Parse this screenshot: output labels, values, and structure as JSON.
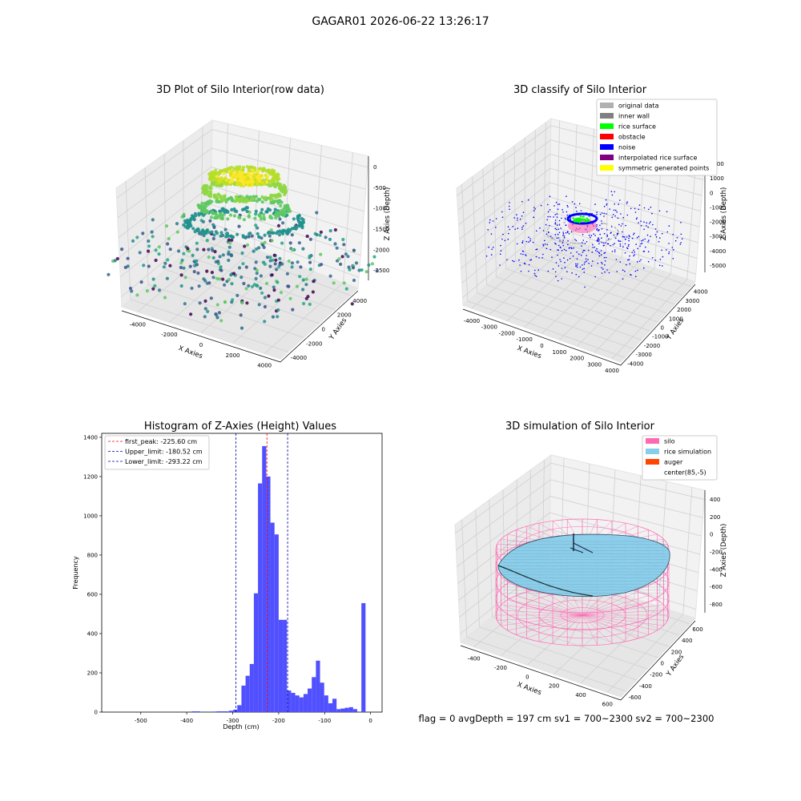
{
  "figure": {
    "suptitle": "GAGAR01 2026-06-22 13:26:17",
    "status_line": "flag = 0     avgDepth = 197 cm  sv1 = 700~2300  sv2 = 700~2300"
  },
  "colors": {
    "pane": "#f2f2f2",
    "grid": "#d0d0d0",
    "hist_bar": "#5050ff",
    "first_peak": "#ff0000",
    "limits": "#0000aa",
    "silo": "#ff69b4",
    "rice": "#87ceeb",
    "auger": "#ff4500",
    "noise": "#0000ff",
    "rice_surface": "#00ff00",
    "original": "#b0b0b0"
  },
  "chart_data": [
    {
      "type": "scatter3d",
      "title": "3D Plot of Silo Interior(row data)",
      "xlabel": "X Axies",
      "ylabel": "Y Axies",
      "zlabel": "Z Axies (Depth)",
      "xticks": [
        "-4000",
        "-2000",
        "0",
        "2000",
        "4000"
      ],
      "yticks": [
        "-4000",
        "-2000",
        "0",
        "2000",
        "4000"
      ],
      "zticks": [
        "0",
        "-500",
        "-1000",
        "-1500",
        "-2000",
        "-2500"
      ],
      "xlim": [
        -4500,
        4500
      ],
      "ylim": [
        -4500,
        4500
      ],
      "zlim": [
        -2700,
        100
      ],
      "colormap": "viridis"
    },
    {
      "type": "scatter3d",
      "title": "3D classify of Silo Interior",
      "xlabel": "X Axies",
      "ylabel": "Y Axies",
      "zlabel": "Z Axies (Depth)",
      "xticks": [
        "-4000",
        "-3000",
        "-2000",
        "-1000",
        "0",
        "1000",
        "2000",
        "3000",
        "4000"
      ],
      "yticks": [
        "-4000",
        "-3000",
        "-2000",
        "-1000",
        "0",
        "1000",
        "2000",
        "3000",
        "4000"
      ],
      "zticks": [
        "2000",
        "1000",
        "0",
        "-1000",
        "-2000",
        "-3000",
        "-4000",
        "-5000"
      ],
      "zticks_partial_top": "000",
      "legend": [
        {
          "label": "original data",
          "color": "#b0b0b0"
        },
        {
          "label": "inner wall",
          "color": "#808080"
        },
        {
          "label": "rice surface",
          "color": "#00ff00"
        },
        {
          "label": "obstacle",
          "color": "#ff0000"
        },
        {
          "label": "noise",
          "color": "#0000ff"
        },
        {
          "label": "interpolated rice surface",
          "color": "#800080"
        },
        {
          "label": "symmetric generated points",
          "color": "#ffff00"
        }
      ],
      "legend_loc": "upper right"
    },
    {
      "type": "histogram",
      "title": "Histogram of Z-Axies (Height) Values",
      "xlabel": "Depth (cm)",
      "ylabel": "Frequency",
      "xlim": [
        -585,
        25
      ],
      "ylim": [
        0,
        1420
      ],
      "xticks": [
        -500,
        -400,
        -300,
        -200,
        -100,
        0
      ],
      "yticks": [
        0,
        200,
        400,
        600,
        800,
        1000,
        1200,
        1400
      ],
      "bin_width": 9,
      "bins": [
        [
          -389,
          4
        ],
        [
          -380,
          4
        ],
        [
          -344,
          3
        ],
        [
          -335,
          4
        ],
        [
          -326,
          4
        ],
        [
          -317,
          4
        ],
        [
          -308,
          7
        ],
        [
          -299,
          12
        ],
        [
          -290,
          35
        ],
        [
          -281,
          135
        ],
        [
          -272,
          185
        ],
        [
          -263,
          245
        ],
        [
          -254,
          605
        ],
        [
          -245,
          1165
        ],
        [
          -236,
          1355
        ],
        [
          -227,
          1200
        ],
        [
          -218,
          965
        ],
        [
          -209,
          905
        ],
        [
          -200,
          470
        ],
        [
          -191,
          470
        ],
        [
          -182,
          110
        ],
        [
          -173,
          98
        ],
        [
          -164,
          85
        ],
        [
          -155,
          75
        ],
        [
          -146,
          92
        ],
        [
          -137,
          120
        ],
        [
          -128,
          178
        ],
        [
          -119,
          262
        ],
        [
          -110,
          150
        ],
        [
          -101,
          85
        ],
        [
          -92,
          45
        ],
        [
          -83,
          68
        ],
        [
          -74,
          15
        ],
        [
          -65,
          18
        ],
        [
          -56,
          22
        ],
        [
          -47,
          25
        ],
        [
          -38,
          15
        ],
        [
          -20,
          555
        ]
      ],
      "lines": [
        {
          "label": "first_peak: -225.60 cm",
          "x": -225.6,
          "color": "#ff0000"
        },
        {
          "label": "Upper_limit: -180.52 cm",
          "x": -180.52,
          "color": "#0000aa"
        },
        {
          "label": "Lower_limit: -293.22 cm",
          "x": -293.22,
          "color": "#0000aa"
        }
      ],
      "legend_loc": "upper left"
    },
    {
      "type": "surface3d",
      "title": "3D simulation of Silo Interior",
      "xlabel": "X Axies",
      "ylabel": "Y Axies",
      "zlabel": "Z Axies (Depth)",
      "xticks": [
        "-400",
        "-200",
        "0",
        "200",
        "400",
        "600"
      ],
      "yticks": [
        "-600",
        "-400",
        "-200",
        "0",
        "200",
        "400",
        "600"
      ],
      "zticks": [
        "400",
        "200",
        "0",
        "-200",
        "-400",
        "-600",
        "-800"
      ],
      "legend": [
        {
          "label": "silo",
          "color": "#ff69b4"
        },
        {
          "label": "rice simulation",
          "color": "#87ceeb"
        },
        {
          "label": "auger",
          "color": "#ff4500"
        },
        {
          "label": "center(85,-5)",
          "color": ""
        }
      ],
      "legend_loc": "upper right"
    }
  ]
}
